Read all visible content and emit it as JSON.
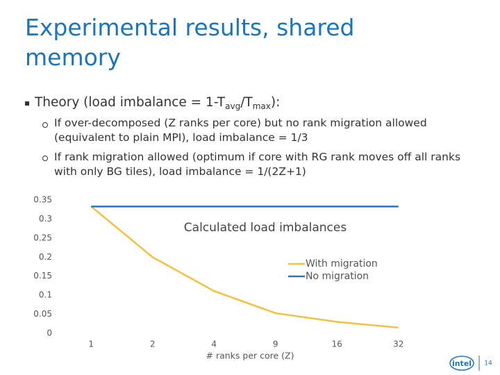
{
  "slide": {
    "title": "Experimental results, shared memory",
    "bullet": [
      "Theory (load imbalance = 1-T",
      "avg",
      "/T",
      "max",
      "):"
    ],
    "subbullets": [
      "If over-decomposed (Z ranks per core) but no rank migration allowed (equivalent to plain MPI), load imbalance = 1/3",
      "If rank migration allowed (optimum if core with RG rank moves off all ranks with only BG tiles), load imbalance = 1/(2Z+1)"
    ],
    "logo": "intel",
    "page_number": "14"
  },
  "chart_data": {
    "type": "line",
    "title": "Calculated load imbalances",
    "x_label": "# ranks per core (Z)",
    "categories": [
      "1",
      "2",
      "4",
      "9",
      "16",
      "32"
    ],
    "series": [
      {
        "name": "With migration",
        "color": "#f5c040",
        "values": [
          0.333,
          0.2,
          0.111,
          0.053,
          0.03,
          0.015
        ]
      },
      {
        "name": "No migration",
        "color": "#2e75b6",
        "values": [
          0.333,
          0.333,
          0.333,
          0.333,
          0.333,
          0.333
        ]
      }
    ],
    "ylim": [
      0,
      0.35
    ],
    "yticks": [
      0,
      0.05,
      0.1,
      0.15,
      0.2,
      0.25,
      0.3,
      0.35
    ],
    "grid": false,
    "legend": "right"
  }
}
